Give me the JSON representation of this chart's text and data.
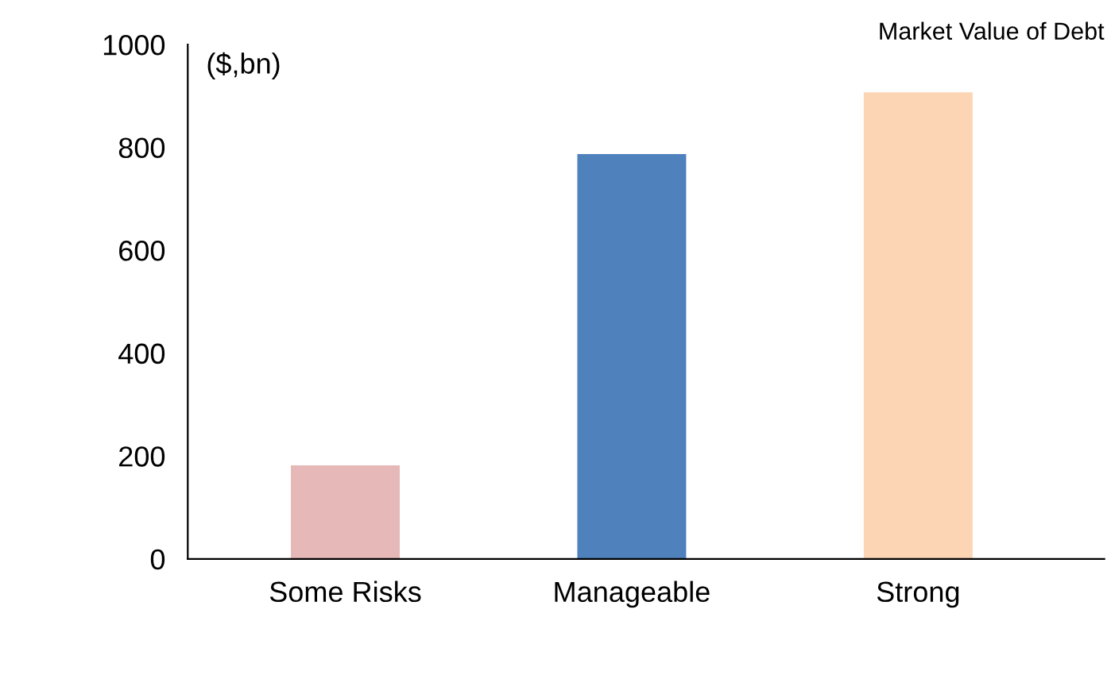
{
  "chart_data": {
    "type": "bar",
    "title": "Market Value of Debt",
    "categories": [
      "Some Risks",
      "Manageable",
      "Strong"
    ],
    "values": [
      182,
      787,
      907
    ],
    "colors": [
      "#e6b8b7",
      "#4f81bd",
      "#fcd5b4"
    ],
    "ylim": [
      0,
      1000
    ],
    "yticks": [
      0,
      200,
      400,
      600,
      800,
      1000
    ],
    "annotations": [
      "($,bn)"
    ],
    "grid": false
  }
}
